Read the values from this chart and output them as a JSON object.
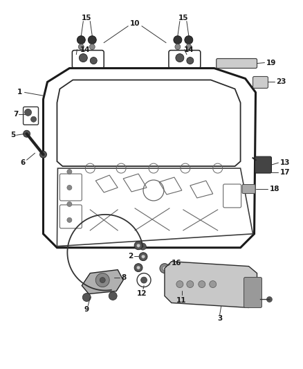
{
  "bg_color": "#ffffff",
  "fig_width": 4.38,
  "fig_height": 5.33,
  "dpi": 100,
  "line_color": "#333333",
  "label_color": "#1a1a1a",
  "label_fontsize": 7.5,
  "lw_door": 2.2,
  "lw_inner": 1.3,
  "lw_detail": 0.8,
  "lw_leader": 0.7
}
